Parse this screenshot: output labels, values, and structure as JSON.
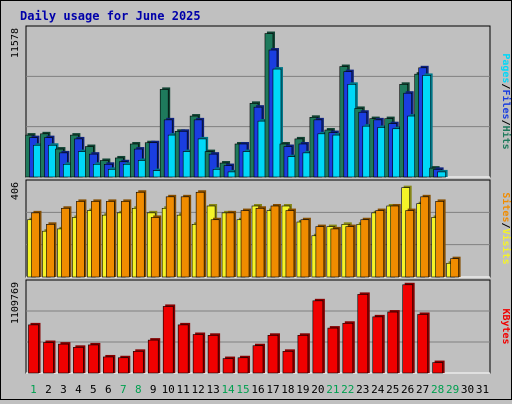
{
  "title": "Daily usage for June 2025",
  "colors": {
    "background": "#c0c0c0",
    "title": "#0000aa",
    "hits": "#1e7a5c",
    "files": "#1a3ee0",
    "pages": "#00d8f8",
    "visits": "#f4f428",
    "sites": "#f08c00",
    "kbytes": "#f00000",
    "weekend": "#00a050"
  },
  "chart_data": [
    {
      "type": "bar",
      "panel": "top",
      "ylabel_parts": [
        "Pages",
        "Files",
        "Hits"
      ],
      "ymax_label": "11578",
      "ylim": [
        0,
        11578
      ],
      "categories": [
        "1",
        "2",
        "3",
        "4",
        "5",
        "6",
        "7",
        "8",
        "9",
        "10",
        "11",
        "12",
        "13",
        "14",
        "15",
        "16",
        "17",
        "18",
        "19",
        "20",
        "21",
        "22",
        "23",
        "24",
        "25",
        "26",
        "27",
        "28",
        "29",
        "30",
        "31"
      ],
      "series": [
        {
          "name": "Hits",
          "values": [
            3300,
            3400,
            2200,
            3300,
            2400,
            1300,
            1500,
            2600,
            2700,
            6900,
            3600,
            4800,
            2000,
            1100,
            2600,
            5800,
            11300,
            2600,
            3000,
            4700,
            3700,
            8700,
            5400,
            4600,
            4600,
            7300,
            8100,
            700,
            0,
            0,
            0
          ]
        },
        {
          "name": "Files",
          "values": [
            3100,
            3100,
            1900,
            3000,
            1800,
            1000,
            1200,
            2200,
            2700,
            4500,
            3600,
            4500,
            1800,
            900,
            2600,
            5500,
            10000,
            2400,
            2600,
            4500,
            3500,
            8300,
            5100,
            4500,
            4200,
            6600,
            8600,
            600,
            0,
            0,
            0
          ]
        },
        {
          "name": "Pages",
          "values": [
            2500,
            2500,
            1000,
            2000,
            1000,
            600,
            1000,
            1300,
            500,
            3300,
            2000,
            3000,
            600,
            400,
            2000,
            4400,
            8500,
            1600,
            1900,
            3400,
            3300,
            7300,
            4000,
            3900,
            3800,
            4800,
            8000,
            400,
            0,
            0,
            0
          ]
        }
      ]
    },
    {
      "type": "bar",
      "panel": "middle",
      "ylabel_parts": [
        "Sites",
        "Visits"
      ],
      "ymax_label": "406",
      "ylim": [
        0,
        406
      ],
      "categories": [
        "1",
        "2",
        "3",
        "4",
        "5",
        "6",
        "7",
        "8",
        "9",
        "10",
        "11",
        "12",
        "13",
        "14",
        "15",
        "16",
        "17",
        "18",
        "19",
        "20",
        "21",
        "22",
        "23",
        "24",
        "25",
        "26",
        "27",
        "28",
        "29",
        "30",
        "31"
      ],
      "series": [
        {
          "name": "Visits",
          "values": [
            250,
            200,
            210,
            260,
            290,
            270,
            280,
            300,
            280,
            300,
            270,
            230,
            310,
            280,
            250,
            310,
            290,
            310,
            240,
            180,
            220,
            230,
            230,
            280,
            310,
            390,
            320,
            260,
            60,
            0,
            0
          ]
        },
        {
          "name": "Sites",
          "values": [
            280,
            230,
            300,
            330,
            330,
            330,
            330,
            370,
            260,
            350,
            350,
            370,
            250,
            280,
            290,
            300,
            310,
            290,
            250,
            220,
            210,
            220,
            250,
            290,
            310,
            290,
            350,
            330,
            80,
            0,
            0
          ]
        }
      ]
    },
    {
      "type": "bar",
      "panel": "bottom",
      "ylabel_parts": [
        "KBytes"
      ],
      "ymax_label": "1109769",
      "ylim": [
        0,
        1109769
      ],
      "categories": [
        "1",
        "2",
        "3",
        "4",
        "5",
        "6",
        "7",
        "8",
        "9",
        "10",
        "11",
        "12",
        "13",
        "14",
        "15",
        "16",
        "17",
        "18",
        "19",
        "20",
        "21",
        "22",
        "23",
        "24",
        "25",
        "26",
        "27",
        "28",
        "29",
        "30",
        "31"
      ],
      "series": [
        {
          "name": "KBytes",
          "values": [
            600000,
            380000,
            360000,
            320000,
            350000,
            200000,
            190000,
            270000,
            410000,
            830000,
            600000,
            480000,
            470000,
            180000,
            190000,
            340000,
            470000,
            270000,
            470000,
            900000,
            560000,
            620000,
            980000,
            700000,
            760000,
            1100000,
            730000,
            130000,
            0,
            0,
            0
          ]
        }
      ]
    }
  ],
  "weekend_days": [
    "1",
    "7",
    "8",
    "14",
    "15",
    "21",
    "22",
    "28",
    "29"
  ]
}
